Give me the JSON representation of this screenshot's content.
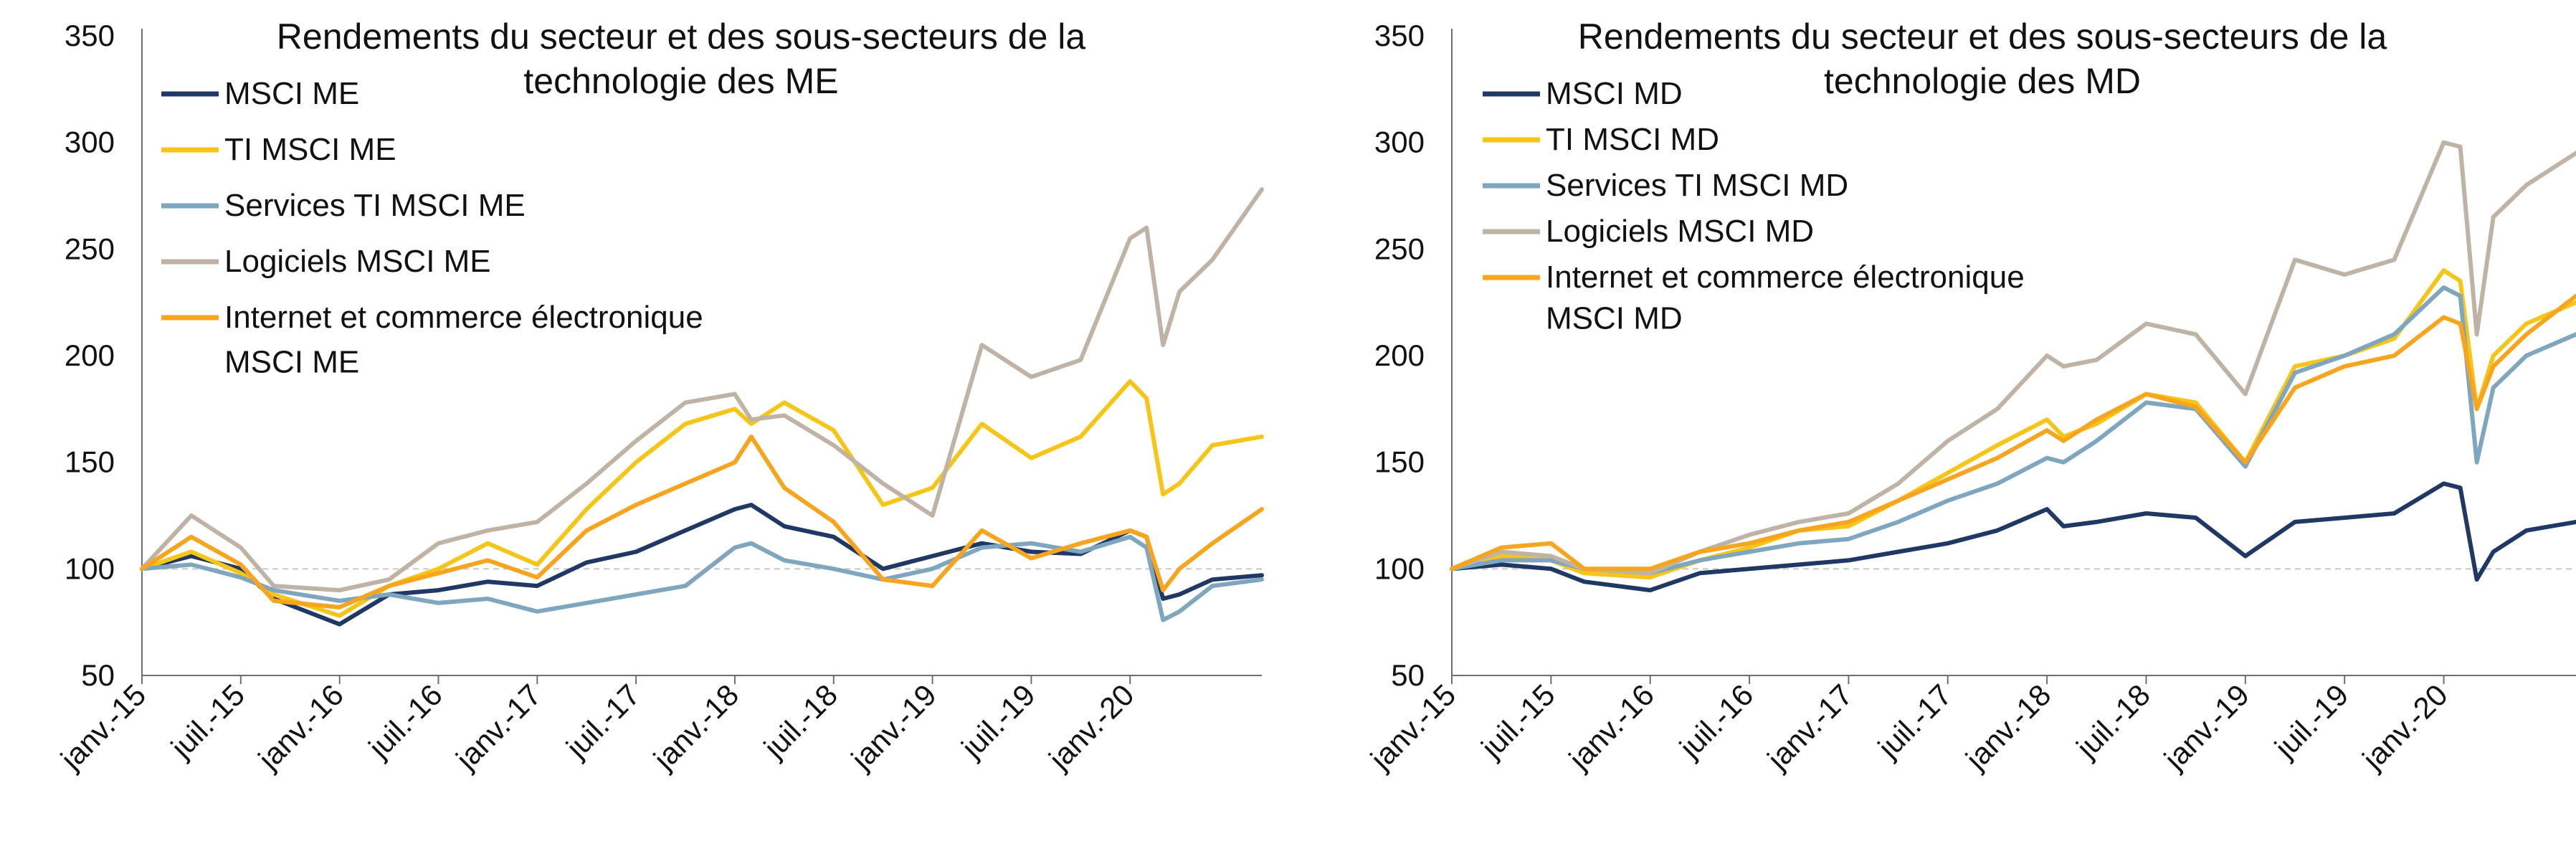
{
  "chart_data": [
    {
      "type": "line",
      "title": [
        "Rendements du secteur et des sous-secteurs de la",
        "technologie des ME"
      ],
      "xlabel": "",
      "ylabel": "",
      "ylim": [
        50,
        350
      ],
      "yticks": [
        50,
        100,
        150,
        200,
        250,
        300,
        350
      ],
      "x_range": [
        "2015-01",
        "2020-09"
      ],
      "x_tick_labels": [
        "janv.-15",
        "juil.-15",
        "janv.-16",
        "juil.-16",
        "janv.-17",
        "juil.-17",
        "janv.-18",
        "juil.-18",
        "janv.-19",
        "juil.-19",
        "janv.-20"
      ],
      "reference_line": 100,
      "legend_position": "top-left",
      "grid": false,
      "series": [
        {
          "name": [
            "MSCI ME"
          ],
          "color": "#1f3864",
          "x": [
            "2015-01",
            "2015-04",
            "2015-07",
            "2015-09",
            "2016-01",
            "2016-04",
            "2016-07",
            "2016-10",
            "2017-01",
            "2017-04",
            "2017-07",
            "2017-10",
            "2018-01",
            "2018-02",
            "2018-04",
            "2018-07",
            "2018-10",
            "2019-01",
            "2019-04",
            "2019-07",
            "2019-10",
            "2020-01",
            "2020-02",
            "2020-03",
            "2020-04",
            "2020-06",
            "2020-09"
          ],
          "values": [
            100,
            106,
            100,
            86,
            74,
            88,
            90,
            94,
            92,
            103,
            108,
            118,
            128,
            130,
            120,
            115,
            100,
            106,
            112,
            108,
            107,
            118,
            115,
            86,
            88,
            95,
            97
          ]
        },
        {
          "name": [
            "TI MSCI ME"
          ],
          "color": "#f5c518",
          "x": [
            "2015-01",
            "2015-04",
            "2015-07",
            "2015-09",
            "2016-01",
            "2016-04",
            "2016-07",
            "2016-10",
            "2017-01",
            "2017-04",
            "2017-07",
            "2017-10",
            "2018-01",
            "2018-02",
            "2018-04",
            "2018-07",
            "2018-10",
            "2019-01",
            "2019-04",
            "2019-07",
            "2019-10",
            "2020-01",
            "2020-02",
            "2020-03",
            "2020-04",
            "2020-06",
            "2020-09"
          ],
          "values": [
            100,
            108,
            98,
            88,
            78,
            92,
            100,
            112,
            102,
            128,
            150,
            168,
            175,
            168,
            178,
            165,
            130,
            138,
            168,
            152,
            162,
            188,
            180,
            135,
            140,
            158,
            162
          ]
        },
        {
          "name": [
            "Services TI MSCI ME"
          ],
          "color": "#7ea6be",
          "x": [
            "2015-01",
            "2015-04",
            "2015-07",
            "2015-09",
            "2016-01",
            "2016-04",
            "2016-07",
            "2016-10",
            "2017-01",
            "2017-04",
            "2017-07",
            "2017-10",
            "2018-01",
            "2018-02",
            "2018-04",
            "2018-07",
            "2018-10",
            "2019-01",
            "2019-04",
            "2019-07",
            "2019-10",
            "2020-01",
            "2020-02",
            "2020-03",
            "2020-04",
            "2020-06",
            "2020-09"
          ],
          "values": [
            100,
            102,
            96,
            90,
            85,
            88,
            84,
            86,
            80,
            84,
            88,
            92,
            110,
            112,
            104,
            100,
            95,
            100,
            110,
            112,
            108,
            115,
            110,
            76,
            80,
            92,
            95
          ]
        },
        {
          "name": [
            "Logiciels MSCI ME"
          ],
          "color": "#bfb3a6",
          "x": [
            "2015-01",
            "2015-04",
            "2015-07",
            "2015-09",
            "2016-01",
            "2016-04",
            "2016-07",
            "2016-10",
            "2017-01",
            "2017-04",
            "2017-07",
            "2017-10",
            "2018-01",
            "2018-02",
            "2018-04",
            "2018-07",
            "2018-10",
            "2019-01",
            "2019-04",
            "2019-07",
            "2019-10",
            "2020-01",
            "2020-02",
            "2020-03",
            "2020-04",
            "2020-06",
            "2020-09"
          ],
          "values": [
            100,
            125,
            110,
            92,
            90,
            95,
            112,
            118,
            122,
            140,
            160,
            178,
            182,
            170,
            172,
            158,
            140,
            125,
            205,
            190,
            198,
            255,
            260,
            205,
            230,
            245,
            278
          ]
        },
        {
          "name": [
            "Internet et commerce électronique",
            "MSCI ME"
          ],
          "color": "#f7a51f",
          "x": [
            "2015-01",
            "2015-04",
            "2015-07",
            "2015-09",
            "2016-01",
            "2016-04",
            "2016-07",
            "2016-10",
            "2017-01",
            "2017-04",
            "2017-07",
            "2017-10",
            "2018-01",
            "2018-02",
            "2018-04",
            "2018-07",
            "2018-10",
            "2019-01",
            "2019-04",
            "2019-07",
            "2019-10",
            "2020-01",
            "2020-02",
            "2020-03",
            "2020-04",
            "2020-06",
            "2020-09"
          ],
          "values": [
            100,
            115,
            102,
            85,
            82,
            92,
            98,
            104,
            96,
            118,
            130,
            140,
            150,
            162,
            138,
            122,
            95,
            92,
            118,
            105,
            112,
            118,
            115,
            90,
            100,
            112,
            128
          ]
        }
      ]
    },
    {
      "type": "line",
      "title": [
        "Rendements du secteur et des sous-secteurs de la",
        "technologie des MD"
      ],
      "xlabel": "",
      "ylabel": "",
      "ylim": [
        50,
        350
      ],
      "yticks": [
        50,
        100,
        150,
        200,
        250,
        300,
        350
      ],
      "x_range": [
        "2015-01",
        "2020-09"
      ],
      "x_tick_labels": [
        "janv.-15",
        "juil.-15",
        "janv.-16",
        "juil.-16",
        "janv.-17",
        "juil.-17",
        "janv.-18",
        "juil.-18",
        "janv.-19",
        "juil.-19",
        "janv.-20"
      ],
      "reference_line": 100,
      "legend_position": "top-left",
      "grid": false,
      "series": [
        {
          "name": [
            "MSCI MD"
          ],
          "color": "#1f3864",
          "x": [
            "2015-01",
            "2015-04",
            "2015-07",
            "2015-09",
            "2016-01",
            "2016-04",
            "2016-07",
            "2016-10",
            "2017-01",
            "2017-04",
            "2017-07",
            "2017-10",
            "2018-01",
            "2018-02",
            "2018-04",
            "2018-07",
            "2018-10",
            "2019-01",
            "2019-04",
            "2019-07",
            "2019-10",
            "2020-01",
            "2020-02",
            "2020-03",
            "2020-04",
            "2020-06",
            "2020-09"
          ],
          "values": [
            100,
            102,
            100,
            94,
            90,
            98,
            100,
            102,
            104,
            108,
            112,
            118,
            128,
            120,
            122,
            126,
            124,
            106,
            122,
            124,
            126,
            140,
            138,
            95,
            108,
            118,
            122
          ]
        },
        {
          "name": [
            "TI MSCI MD"
          ],
          "color": "#f5c518",
          "x": [
            "2015-01",
            "2015-04",
            "2015-07",
            "2015-09",
            "2016-01",
            "2016-04",
            "2016-07",
            "2016-10",
            "2017-01",
            "2017-04",
            "2017-07",
            "2017-10",
            "2018-01",
            "2018-02",
            "2018-04",
            "2018-07",
            "2018-10",
            "2019-01",
            "2019-04",
            "2019-07",
            "2019-10",
            "2020-01",
            "2020-02",
            "2020-03",
            "2020-04",
            "2020-06",
            "2020-09"
          ],
          "values": [
            100,
            106,
            104,
            98,
            96,
            104,
            110,
            118,
            120,
            132,
            145,
            158,
            170,
            162,
            168,
            182,
            178,
            150,
            195,
            200,
            208,
            240,
            235,
            175,
            200,
            215,
            225
          ]
        },
        {
          "name": [
            "Services TI MSCI MD"
          ],
          "color": "#7ea6be",
          "x": [
            "2015-01",
            "2015-04",
            "2015-07",
            "2015-09",
            "2016-01",
            "2016-04",
            "2016-07",
            "2016-10",
            "2017-01",
            "2017-04",
            "2017-07",
            "2017-10",
            "2018-01",
            "2018-02",
            "2018-04",
            "2018-07",
            "2018-10",
            "2019-01",
            "2019-04",
            "2019-07",
            "2019-10",
            "2020-01",
            "2020-02",
            "2020-03",
            "2020-04",
            "2020-06",
            "2020-09"
          ],
          "values": [
            100,
            104,
            104,
            100,
            98,
            104,
            108,
            112,
            114,
            122,
            132,
            140,
            152,
            150,
            160,
            178,
            175,
            148,
            192,
            200,
            210,
            232,
            228,
            150,
            185,
            200,
            210
          ]
        },
        {
          "name": [
            "Logiciels MSCI MD"
          ],
          "color": "#bfb3a6",
          "x": [
            "2015-01",
            "2015-04",
            "2015-07",
            "2015-09",
            "2016-01",
            "2016-04",
            "2016-07",
            "2016-10",
            "2017-01",
            "2017-04",
            "2017-07",
            "2017-10",
            "2018-01",
            "2018-02",
            "2018-04",
            "2018-07",
            "2018-10",
            "2019-01",
            "2019-04",
            "2019-07",
            "2019-10",
            "2020-01",
            "2020-02",
            "2020-03",
            "2020-04",
            "2020-06",
            "2020-09"
          ],
          "values": [
            100,
            108,
            106,
            100,
            98,
            108,
            116,
            122,
            126,
            140,
            160,
            175,
            200,
            195,
            198,
            215,
            210,
            182,
            245,
            238,
            245,
            300,
            298,
            210,
            265,
            280,
            295
          ]
        },
        {
          "name": [
            "Internet et commerce électronique",
            "MSCI MD"
          ],
          "color": "#f7a51f",
          "x": [
            "2015-01",
            "2015-04",
            "2015-07",
            "2015-09",
            "2016-01",
            "2016-04",
            "2016-07",
            "2016-10",
            "2017-01",
            "2017-04",
            "2017-07",
            "2017-10",
            "2018-01",
            "2018-02",
            "2018-04",
            "2018-07",
            "2018-10",
            "2019-01",
            "2019-04",
            "2019-07",
            "2019-10",
            "2020-01",
            "2020-02",
            "2020-03",
            "2020-04",
            "2020-06",
            "2020-09"
          ],
          "values": [
            100,
            110,
            112,
            100,
            100,
            108,
            112,
            118,
            122,
            132,
            142,
            152,
            165,
            160,
            170,
            182,
            176,
            150,
            185,
            195,
            200,
            218,
            215,
            175,
            195,
            210,
            228
          ]
        }
      ]
    }
  ]
}
